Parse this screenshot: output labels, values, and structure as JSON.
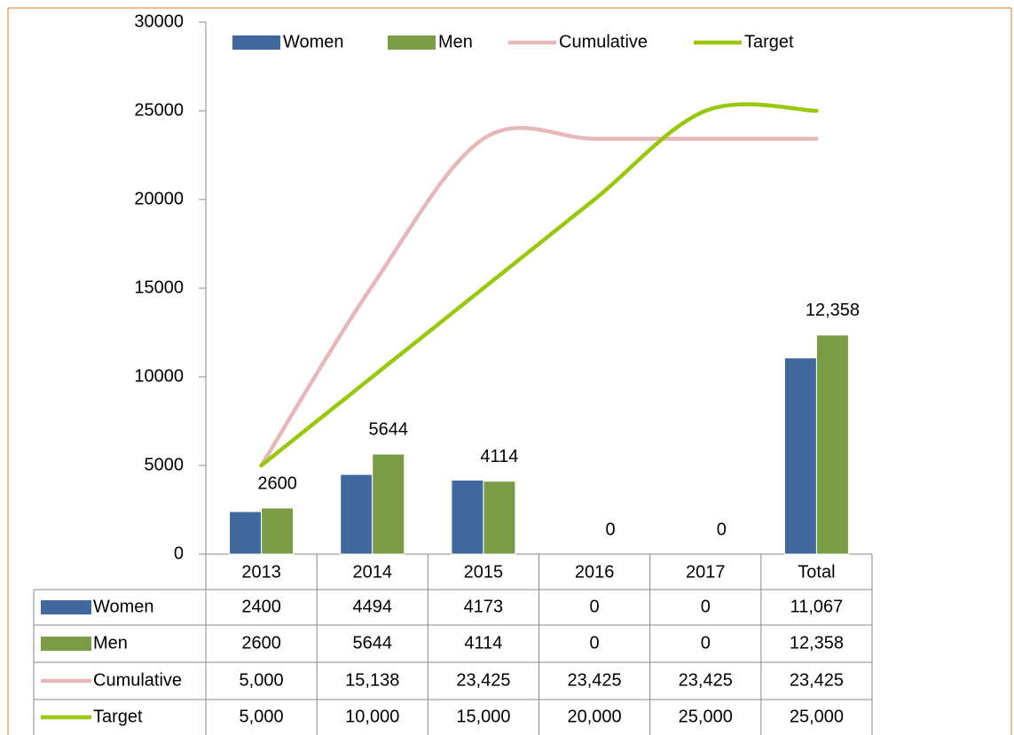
{
  "chart_data": {
    "type": "bar_line_table",
    "legend": "top",
    "categories": [
      "2013",
      "2014",
      "2015",
      "2016",
      "2017",
      "Total"
    ],
    "ylim": [
      0,
      30000
    ],
    "yticks": [
      0,
      5000,
      10000,
      15000,
      20000,
      25000,
      30000
    ],
    "series": [
      {
        "name": "Women",
        "type": "bar",
        "color": "#41699e",
        "values": [
          2400,
          4494,
          4173,
          0,
          0,
          11067
        ],
        "value_labels": [
          "2400",
          "4494",
          "4173",
          "0",
          "0",
          "11,067"
        ]
      },
      {
        "name": "Men",
        "type": "bar",
        "color": "#7a9c45",
        "values": [
          2600,
          5644,
          4114,
          0,
          0,
          12358
        ],
        "value_labels": [
          "2600",
          "5644",
          "4114",
          "0",
          "0",
          "12,358"
        ],
        "data_labels": true
      },
      {
        "name": "Cumulative",
        "type": "line",
        "color": "#e6b8b7",
        "values": [
          5000,
          15138,
          23425,
          23425,
          23425,
          23425
        ],
        "value_labels": [
          "5,000",
          "15,138",
          "23,425",
          "23,425",
          "23,425",
          "23,425"
        ]
      },
      {
        "name": "Target",
        "type": "line",
        "color": "#99c80a",
        "values": [
          5000,
          10000,
          15000,
          20000,
          25000,
          25000
        ],
        "value_labels": [
          "5,000",
          "10,000",
          "15,000",
          "20,000",
          "25,000",
          "25,000"
        ]
      }
    ]
  }
}
